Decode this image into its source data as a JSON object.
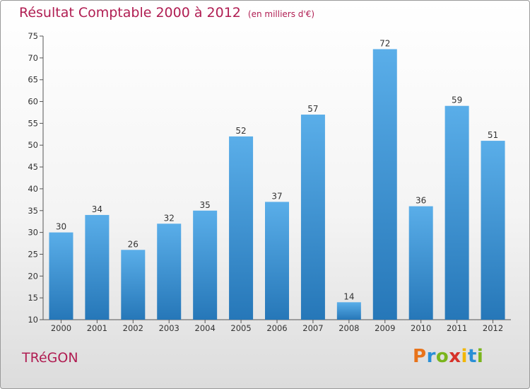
{
  "header": {
    "title": "Résultat Comptable 2000 à 2012",
    "subtitle": "(en milliers d'€)"
  },
  "footer": {
    "commune": "TRéGON",
    "logo": [
      "P",
      "r",
      "o",
      "x",
      "i",
      "t",
      "i"
    ]
  },
  "colors": {
    "title": "#b01d52",
    "bar_top": "#5aaee9",
    "bar_bottom": "#2677b8",
    "logo": [
      "#e8731a",
      "#2a8fd6",
      "#7ab51d",
      "#d6322a",
      "#f2b705",
      "#2a8fd6",
      "#7ab51d"
    ]
  },
  "chart_data": {
    "type": "bar",
    "title": "Résultat Comptable 2000 à 2012",
    "subtitle": "(en milliers d'€)",
    "categories": [
      "2000",
      "2001",
      "2002",
      "2003",
      "2004",
      "2005",
      "2006",
      "2007",
      "2008",
      "2009",
      "2010",
      "2011",
      "2012"
    ],
    "values": [
      30,
      34,
      26,
      32,
      35,
      52,
      37,
      57,
      14,
      72,
      36,
      59,
      51
    ],
    "ylim": [
      10,
      75
    ],
    "yticks": [
      10,
      15,
      20,
      25,
      30,
      35,
      40,
      45,
      50,
      55,
      60,
      65,
      70,
      75
    ],
    "grid": false,
    "data_labels": true
  }
}
